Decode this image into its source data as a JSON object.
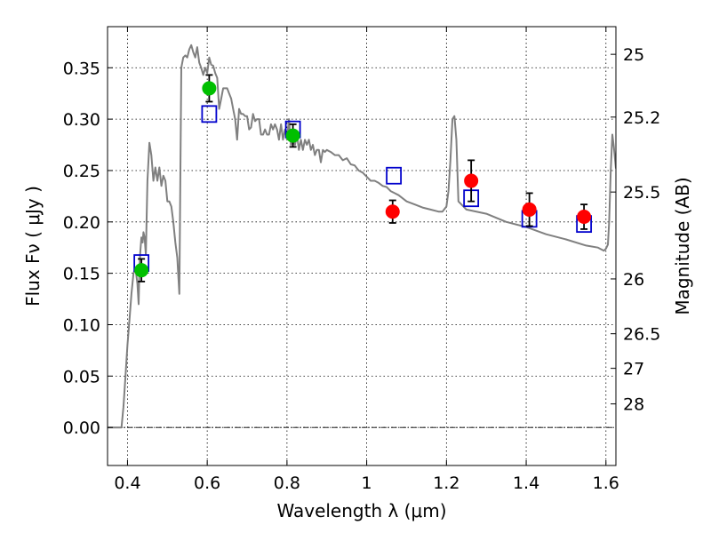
{
  "chart_data": {
    "type": "scatter",
    "xlabel": "Wavelength  λ (μm)",
    "ylabel": "Flux  Fν  ( μJy )",
    "y2label": "Magnitude (AB)",
    "xlim": [
      0.35,
      1.625
    ],
    "ylim": [
      -0.037,
      0.39
    ],
    "grid": true,
    "x_ticks": [
      {
        "value": 0.4,
        "label": "0.4"
      },
      {
        "value": 0.6,
        "label": "0.6"
      },
      {
        "value": 0.8,
        "label": "0.8"
      },
      {
        "value": 1.0,
        "label": "1"
      },
      {
        "value": 1.2,
        "label": "1.2"
      },
      {
        "value": 1.4,
        "label": "1.4"
      },
      {
        "value": 1.6,
        "label": "1.6"
      }
    ],
    "y_ticks": [
      {
        "value": 0.0,
        "label": "0.00"
      },
      {
        "value": 0.05,
        "label": "0.05"
      },
      {
        "value": 0.1,
        "label": "0.10"
      },
      {
        "value": 0.15,
        "label": "0.15"
      },
      {
        "value": 0.2,
        "label": "0.20"
      },
      {
        "value": 0.25,
        "label": "0.25"
      },
      {
        "value": 0.3,
        "label": "0.30"
      },
      {
        "value": 0.35,
        "label": "0.35"
      }
    ],
    "y2_ticks": [
      {
        "mag": 25,
        "label": "25"
      },
      {
        "mag": 25.2,
        "label": "25.2"
      },
      {
        "mag": 25.5,
        "label": "25.5"
      },
      {
        "mag": 26,
        "label": "26"
      },
      {
        "mag": 26.5,
        "label": "26.5"
      },
      {
        "mag": 27,
        "label": "27"
      },
      {
        "mag": 28,
        "label": "28"
      }
    ],
    "colors": {
      "sed": "#808080",
      "green": "#00bf00",
      "red": "#ff0000",
      "model": "#0000cc",
      "errorbar": "#000000"
    },
    "series": [
      {
        "kind": "line",
        "x": [
          0.35,
          0.385,
          0.39,
          0.395,
          0.4,
          0.405,
          0.41,
          0.415,
          0.42,
          0.425,
          0.428,
          0.43,
          0.432,
          0.435,
          0.438,
          0.44,
          0.443,
          0.446,
          0.45,
          0.455,
          0.46,
          0.465,
          0.47,
          0.475,
          0.48,
          0.485,
          0.49,
          0.495,
          0.5,
          0.505,
          0.51,
          0.515,
          0.52,
          0.525,
          0.53,
          0.535,
          0.54,
          0.545,
          0.55,
          0.555,
          0.56,
          0.565,
          0.57,
          0.575,
          0.58,
          0.585,
          0.59,
          0.595,
          0.6,
          0.605,
          0.61,
          0.615,
          0.62,
          0.625,
          0.63,
          0.635,
          0.64,
          0.645,
          0.65,
          0.655,
          0.66,
          0.665,
          0.67,
          0.675,
          0.68,
          0.685,
          0.69,
          0.695,
          0.7,
          0.705,
          0.71,
          0.715,
          0.72,
          0.725,
          0.73,
          0.735,
          0.74,
          0.745,
          0.75,
          0.755,
          0.76,
          0.765,
          0.77,
          0.775,
          0.78,
          0.785,
          0.79,
          0.795,
          0.8,
          0.805,
          0.81,
          0.815,
          0.82,
          0.825,
          0.83,
          0.835,
          0.84,
          0.845,
          0.85,
          0.855,
          0.86,
          0.865,
          0.87,
          0.875,
          0.88,
          0.885,
          0.89,
          0.895,
          0.9,
          0.91,
          0.92,
          0.93,
          0.94,
          0.95,
          0.96,
          0.97,
          0.98,
          0.99,
          1.0,
          1.01,
          1.02,
          1.03,
          1.04,
          1.05,
          1.06,
          1.07,
          1.08,
          1.1,
          1.12,
          1.14,
          1.16,
          1.18,
          1.19,
          1.2,
          1.205,
          1.21,
          1.215,
          1.22,
          1.225,
          1.23,
          1.25,
          1.3,
          1.35,
          1.4,
          1.45,
          1.5,
          1.55,
          1.58,
          1.595,
          1.6,
          1.605,
          1.608,
          1.612,
          1.616,
          1.62,
          1.625
        ],
        "y": [
          0.0,
          0.0,
          0.02,
          0.05,
          0.08,
          0.105,
          0.13,
          0.15,
          0.155,
          0.14,
          0.12,
          0.155,
          0.17,
          0.185,
          0.18,
          0.19,
          0.185,
          0.168,
          0.24,
          0.277,
          0.265,
          0.24,
          0.253,
          0.24,
          0.253,
          0.235,
          0.245,
          0.24,
          0.22,
          0.22,
          0.215,
          0.2,
          0.18,
          0.165,
          0.13,
          0.35,
          0.36,
          0.362,
          0.36,
          0.368,
          0.372,
          0.365,
          0.36,
          0.37,
          0.355,
          0.35,
          0.343,
          0.35,
          0.345,
          0.36,
          0.353,
          0.352,
          0.345,
          0.34,
          0.31,
          0.32,
          0.33,
          0.33,
          0.33,
          0.325,
          0.32,
          0.31,
          0.3,
          0.28,
          0.31,
          0.305,
          0.305,
          0.303,
          0.303,
          0.29,
          0.292,
          0.305,
          0.298,
          0.3,
          0.3,
          0.285,
          0.285,
          0.29,
          0.285,
          0.285,
          0.295,
          0.29,
          0.295,
          0.29,
          0.28,
          0.295,
          0.28,
          0.29,
          0.28,
          0.3,
          0.275,
          0.28,
          0.275,
          0.285,
          0.27,
          0.28,
          0.27,
          0.28,
          0.275,
          0.28,
          0.27,
          0.275,
          0.265,
          0.27,
          0.27,
          0.258,
          0.27,
          0.268,
          0.27,
          0.268,
          0.265,
          0.265,
          0.26,
          0.262,
          0.256,
          0.255,
          0.25,
          0.248,
          0.244,
          0.24,
          0.24,
          0.238,
          0.235,
          0.234,
          0.23,
          0.228,
          0.226,
          0.22,
          0.217,
          0.214,
          0.212,
          0.21,
          0.21,
          0.215,
          0.23,
          0.26,
          0.3,
          0.303,
          0.28,
          0.22,
          0.212,
          0.208,
          0.2,
          0.195,
          0.188,
          0.183,
          0.177,
          0.175,
          0.172,
          0.174,
          0.178,
          0.2,
          0.25,
          0.285,
          0.272,
          0.252
        ]
      },
      {
        "kind": "scatter",
        "name": "green",
        "x": [
          0.435,
          0.605,
          0.815
        ],
        "y": [
          0.153,
          0.33,
          0.284
        ],
        "yerr": [
          0.011,
          0.013,
          0.011
        ]
      },
      {
        "kind": "scatter",
        "name": "red",
        "x": [
          1.065,
          1.262,
          1.408,
          1.545
        ],
        "y": [
          0.21,
          0.24,
          0.212,
          0.205
        ],
        "yerr": [
          0.011,
          0.02,
          0.016,
          0.012
        ]
      },
      {
        "kind": "scatter",
        "name": "model",
        "x": [
          0.435,
          0.605,
          0.815,
          1.068,
          1.262,
          1.408,
          1.545
        ],
        "y": [
          0.16,
          0.305,
          0.29,
          0.245,
          0.223,
          0.203,
          0.198
        ]
      }
    ]
  }
}
